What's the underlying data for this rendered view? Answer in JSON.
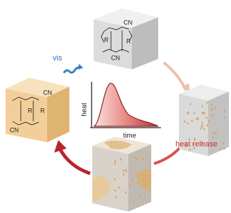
{
  "cubes": [
    {
      "labels": [
        "CN",
        "R",
        "R",
        "CN"
      ]
    },
    {
      "labels": [
        "CN",
        "R",
        "R",
        "CN"
      ]
    }
  ],
  "light": "vis",
  "plot": {
    "y_label": "heat",
    "x_label": "time"
  },
  "arrow_label": "heat release"
}
